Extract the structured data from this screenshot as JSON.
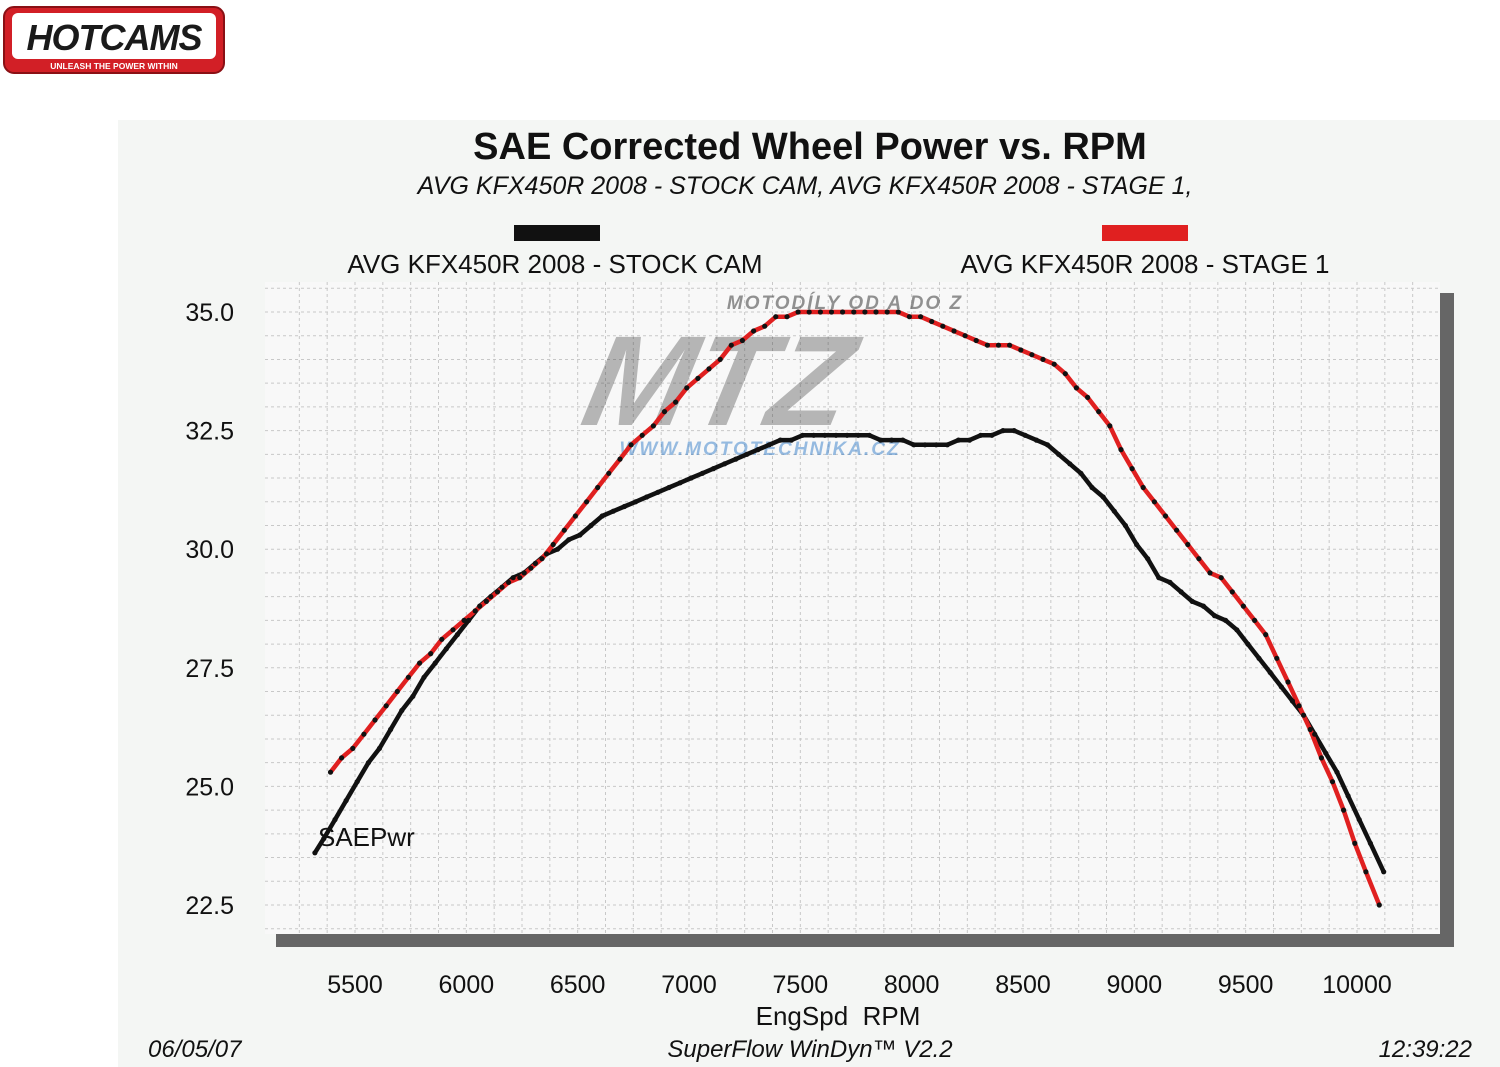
{
  "logo": {
    "text": "HOTCAMS",
    "tagline": "UNLEASH THE POWER WITHIN",
    "color_red": "#d21f26",
    "color_dark": "#1a1a1a"
  },
  "watermark": {
    "top_text": "MOTODÍLY OD A DO Z",
    "main_text": "MTZ",
    "bottom_text": "WWW.MOTOTECHNIKA.CZ",
    "color_dark": "#3a3a3a",
    "color_blue": "#1d6ec4"
  },
  "chart_data": {
    "type": "line",
    "title": "SAE Corrected Wheel Power vs. RPM",
    "subtitle": "AVG KFX450R 2008 - STOCK CAM, AVG KFX450R 2008 - STAGE 1,",
    "xlabel": "EngSpd  RPM",
    "ylabel": "SAEPwr",
    "xlim": [
      5200,
      10500
    ],
    "ylim": [
      22.0,
      35.5
    ],
    "x_ticks": [
      5500,
      6000,
      6500,
      7000,
      7500,
      8000,
      8500,
      9000,
      9500,
      10000
    ],
    "x_tick_labels": [
      "5500",
      "6000",
      "6500",
      "7000",
      "7500",
      "8000",
      "8500",
      "9000",
      "9500",
      "10000"
    ],
    "y_ticks": [
      22.5,
      25.0,
      27.5,
      30.0,
      32.5,
      35.0
    ],
    "y_tick_labels": [
      "22.5",
      "25.0",
      "27.5",
      "30.0",
      "32.5",
      "35.0"
    ],
    "grid": true,
    "legend_position": "top",
    "series": [
      {
        "name": "AVG KFX450R 2008 - STOCK CAM",
        "color": "#111111",
        "x": [
          5320,
          5360,
          5410,
          5460,
          5510,
          5560,
          5610,
          5660,
          5710,
          5760,
          5810,
          5860,
          5910,
          5960,
          6010,
          6060,
          6110,
          6160,
          6210,
          6260,
          6310,
          6360,
          6410,
          6460,
          6510,
          6560,
          6610,
          6660,
          6710,
          6760,
          6810,
          6860,
          6910,
          6960,
          7010,
          7060,
          7110,
          7160,
          7210,
          7260,
          7310,
          7360,
          7410,
          7460,
          7510,
          7560,
          7610,
          7660,
          7710,
          7760,
          7810,
          7860,
          7910,
          7960,
          8010,
          8060,
          8110,
          8160,
          8210,
          8260,
          8310,
          8360,
          8410,
          8460,
          8510,
          8560,
          8610,
          8660,
          8710,
          8760,
          8810,
          8860,
          8910,
          8960,
          9010,
          9060,
          9110,
          9160,
          9210,
          9260,
          9310,
          9360,
          9410,
          9460,
          9510,
          9560,
          9610,
          9660,
          9710,
          9760,
          9810,
          9860,
          9910,
          9960,
          10010,
          10060,
          10120
        ],
        "y": [
          23.6,
          23.9,
          24.3,
          24.7,
          25.1,
          25.5,
          25.8,
          26.2,
          26.6,
          26.9,
          27.3,
          27.6,
          27.9,
          28.2,
          28.5,
          28.8,
          29.0,
          29.2,
          29.4,
          29.5,
          29.7,
          29.9,
          30.0,
          30.2,
          30.3,
          30.5,
          30.7,
          30.8,
          30.9,
          31.0,
          31.1,
          31.2,
          31.3,
          31.4,
          31.5,
          31.6,
          31.7,
          31.8,
          31.9,
          32.0,
          32.1,
          32.2,
          32.3,
          32.3,
          32.4,
          32.4,
          32.4,
          32.4,
          32.4,
          32.4,
          32.4,
          32.3,
          32.3,
          32.3,
          32.2,
          32.2,
          32.2,
          32.2,
          32.3,
          32.3,
          32.4,
          32.4,
          32.5,
          32.5,
          32.4,
          32.3,
          32.2,
          32.0,
          31.8,
          31.6,
          31.3,
          31.1,
          30.8,
          30.5,
          30.1,
          29.8,
          29.4,
          29.3,
          29.1,
          28.9,
          28.8,
          28.6,
          28.5,
          28.3,
          28.0,
          27.7,
          27.4,
          27.1,
          26.8,
          26.5,
          26.1,
          25.7,
          25.3,
          24.8,
          24.3,
          23.8,
          23.2
        ]
      },
      {
        "name": "AVG KFX450R 2008 - STAGE 1",
        "color": "#e02020",
        "x": [
          5390,
          5440,
          5490,
          5540,
          5590,
          5640,
          5690,
          5740,
          5790,
          5840,
          5890,
          5940,
          5990,
          6040,
          6090,
          6140,
          6190,
          6240,
          6290,
          6340,
          6390,
          6440,
          6490,
          6540,
          6590,
          6640,
          6690,
          6740,
          6790,
          6840,
          6890,
          6940,
          6990,
          7040,
          7090,
          7140,
          7190,
          7240,
          7290,
          7340,
          7390,
          7440,
          7490,
          7540,
          7590,
          7640,
          7690,
          7740,
          7790,
          7840,
          7890,
          7940,
          7990,
          8040,
          8090,
          8140,
          8190,
          8240,
          8290,
          8340,
          8390,
          8440,
          8490,
          8540,
          8590,
          8640,
          8690,
          8740,
          8790,
          8840,
          8890,
          8940,
          8990,
          9040,
          9090,
          9140,
          9190,
          9240,
          9290,
          9340,
          9390,
          9440,
          9490,
          9540,
          9590,
          9640,
          9690,
          9740,
          9790,
          9840,
          9890,
          9940,
          9990,
          10040,
          10100
        ],
        "y": [
          25.3,
          25.6,
          25.8,
          26.1,
          26.4,
          26.7,
          27.0,
          27.3,
          27.6,
          27.8,
          28.1,
          28.3,
          28.5,
          28.7,
          28.9,
          29.1,
          29.3,
          29.4,
          29.6,
          29.8,
          30.1,
          30.4,
          30.7,
          31.0,
          31.3,
          31.6,
          31.9,
          32.2,
          32.4,
          32.6,
          32.9,
          33.1,
          33.4,
          33.6,
          33.8,
          34.0,
          34.3,
          34.4,
          34.6,
          34.7,
          34.9,
          34.9,
          35.0,
          35.0,
          35.0,
          35.0,
          35.0,
          35.0,
          35.0,
          35.0,
          35.0,
          35.0,
          34.9,
          34.9,
          34.8,
          34.7,
          34.6,
          34.5,
          34.4,
          34.3,
          34.3,
          34.3,
          34.2,
          34.1,
          34.0,
          33.9,
          33.7,
          33.4,
          33.2,
          32.9,
          32.6,
          32.1,
          31.7,
          31.3,
          31.0,
          30.7,
          30.4,
          30.1,
          29.8,
          29.5,
          29.4,
          29.1,
          28.8,
          28.5,
          28.2,
          27.7,
          27.2,
          26.7,
          26.2,
          25.6,
          25.1,
          24.5,
          23.8,
          23.2,
          22.5
        ]
      }
    ]
  },
  "footer": {
    "date": "06/05/07",
    "software": "SuperFlow WinDyn™ V2.2",
    "time": "12:39:22"
  }
}
